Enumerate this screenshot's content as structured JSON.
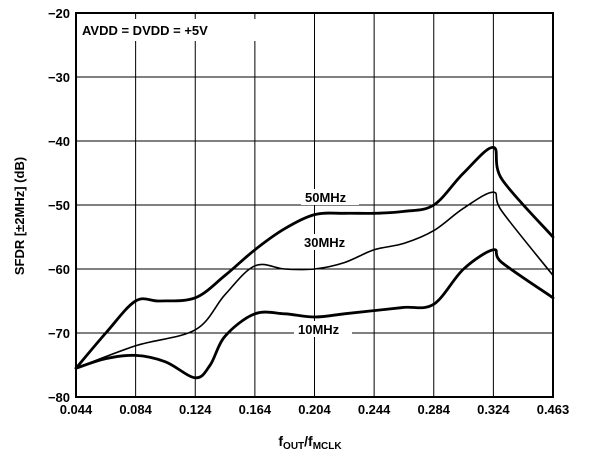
{
  "chart_data": {
    "type": "line",
    "annotation": "AVDD = DVDD = +5V",
    "xlabel_main": "f",
    "xlabel_sub1": "OUT",
    "xlabel_mid": "/f",
    "xlabel_sub2": "MCLK",
    "ylabel": "SFDR [±2MHz] (dB)",
    "x_ticks": [
      "0.044",
      "0.084",
      "0.124",
      "0.164",
      "0.204",
      "0.244",
      "0.284",
      "0.324",
      "0.463"
    ],
    "y_ticks": [
      "−20",
      "−30",
      "−40",
      "−50",
      "−60",
      "−70",
      "−80"
    ],
    "y_tick_values": [
      -20,
      -30,
      -40,
      -50,
      -60,
      -70,
      -80
    ],
    "ylim": [
      -80,
      -20
    ],
    "grid": true,
    "x_scale": "tick-index",
    "series": [
      {
        "name": "50MHz",
        "linewidth": "thick",
        "x": [
          0.044,
          0.064,
          0.084,
          0.1,
          0.124,
          0.144,
          0.164,
          0.184,
          0.204,
          0.224,
          0.244,
          0.264,
          0.284,
          0.304,
          0.324,
          0.344,
          0.463
        ],
        "y": [
          -75.5,
          -70,
          -65,
          -65,
          -64.5,
          -61,
          -57,
          -53.7,
          -51.5,
          -51.3,
          -51.3,
          -51,
          -50,
          -45,
          -41,
          -46,
          -55
        ]
      },
      {
        "name": "30MHz",
        "linewidth": "thin",
        "x": [
          0.044,
          0.084,
          0.124,
          0.144,
          0.164,
          0.184,
          0.204,
          0.224,
          0.244,
          0.264,
          0.284,
          0.304,
          0.324,
          0.344,
          0.463
        ],
        "y": [
          -75.5,
          -72,
          -69.5,
          -64,
          -59.5,
          -60,
          -60,
          -59,
          -57,
          -56,
          -54,
          -50.5,
          -48,
          -51,
          -61
        ]
      },
      {
        "name": "10MHz",
        "linewidth": "thick",
        "x": [
          0.044,
          0.064,
          0.084,
          0.104,
          0.124,
          0.134,
          0.144,
          0.164,
          0.184,
          0.204,
          0.224,
          0.244,
          0.264,
          0.284,
          0.304,
          0.324,
          0.344,
          0.463
        ],
        "y": [
          -75.5,
          -74,
          -73.5,
          -74.5,
          -77,
          -75,
          -70.5,
          -67,
          -67,
          -67.5,
          -67,
          -66.5,
          -66,
          -65.5,
          -60,
          -57,
          -59,
          -64.5
        ]
      }
    ]
  }
}
